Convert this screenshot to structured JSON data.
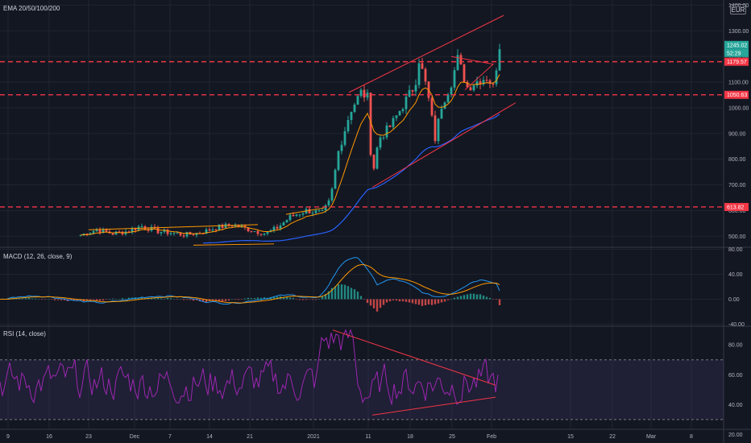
{
  "price_pane": {
    "title": "EMA 20/50/100/200",
    "currency": "EUR",
    "y_ticks": [
      500,
      600,
      700,
      800,
      900,
      1000,
      1100,
      1200,
      1300,
      1400
    ],
    "y_tick_labels": [
      "500.00",
      "600.00",
      "700.00",
      "800.00",
      "900.00",
      "1000.00",
      "1100.00",
      "1200.00",
      "1300.00",
      "1400.00"
    ],
    "price_tags": [
      {
        "value": 1245.02,
        "label": "1245.02",
        "color": "#26a69a"
      },
      {
        "label": "52:29",
        "color": "#26a69a"
      },
      {
        "value": 1179.57,
        "label": "1179.57",
        "color": "#f23645"
      },
      {
        "value": 1050.63,
        "label": "1050.63",
        "color": "#f23645"
      },
      {
        "value": 613.82,
        "label": "613.82",
        "color": "#f23645"
      }
    ],
    "support_resistance_levels": [
      1179.57,
      1050.63,
      613.82
    ]
  },
  "macd_pane": {
    "title": "MACD (12, 26, close, 9)",
    "y_ticks": [
      80,
      40,
      0,
      -40
    ],
    "y_tick_labels": [
      "80.00",
      "40.00",
      "0.00",
      "-40.00"
    ]
  },
  "rsi_pane": {
    "title": "RSI (14, close)",
    "y_ticks": [
      80,
      60,
      40,
      20
    ],
    "y_tick_labels": [
      "80.00",
      "60.00",
      "40.00",
      "20.00"
    ],
    "band": [
      30,
      70
    ]
  },
  "x_axis": {
    "labels": [
      "9",
      "16",
      "23",
      "Dec",
      "7",
      "14",
      "21",
      "2021",
      "11",
      "18",
      "25",
      "Feb",
      "15",
      "22",
      "Mar",
      "8"
    ]
  },
  "chart_data": [
    {
      "type": "line",
      "title": "EMA 20/50/100/200",
      "x": [
        "9",
        "16",
        "23",
        "Dec",
        "7",
        "14",
        "21",
        "2021",
        "11",
        "18",
        "25",
        "Feb"
      ],
      "series": [
        {
          "values": [
            505,
            515,
            540,
            520,
            510,
            530,
            545,
            600,
            840,
            990,
            1080,
            1245
          ]
        }
      ],
      "ylim": [
        460,
        1420
      ],
      "colors": {
        "up": "#26a69a",
        "down": "#ef5350",
        "ema20": "#ff9800",
        "ema200": "#2962ff",
        "levels": "#f23645"
      }
    },
    {
      "type": "line",
      "title": "MACD (12, 26, close, 9)",
      "x": [
        "9",
        "16",
        "23",
        "Dec",
        "7",
        "14",
        "21",
        "2021",
        "11",
        "18",
        "25",
        "Feb"
      ],
      "series": [
        {
          "values": [
            5,
            2,
            12,
            2,
            0,
            10,
            2,
            15,
            75,
            5,
            35,
            25
          ]
        }
      ],
      "ylim": [
        -42,
        82
      ]
    },
    {
      "type": "line",
      "title": "RSI (14, close)",
      "x": [
        "9",
        "16",
        "23",
        "Dec",
        "7",
        "14",
        "21",
        "2021",
        "11",
        "18",
        "25",
        "Feb"
      ],
      "series": [
        {
          "values": [
            62,
            58,
            66,
            42,
            48,
            55,
            52,
            63,
            85,
            45,
            55,
            68
          ]
        }
      ],
      "ylim": [
        24,
        92
      ]
    }
  ]
}
